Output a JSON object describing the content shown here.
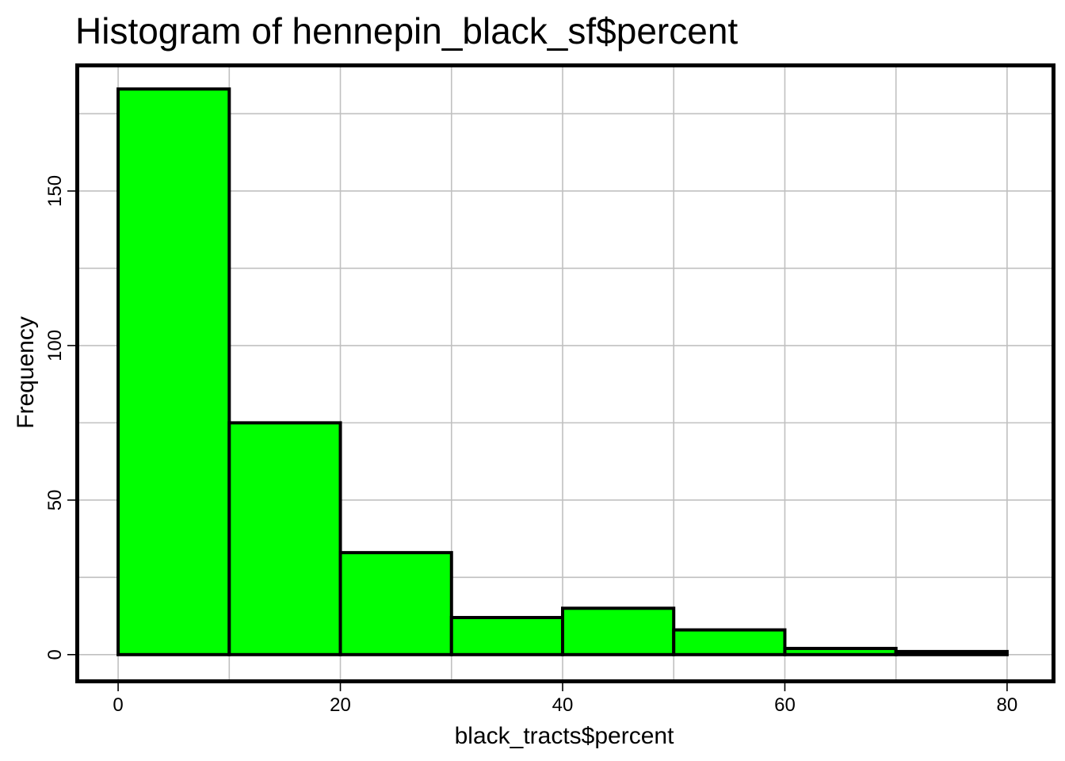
{
  "chart_data": {
    "type": "bar",
    "title": "Histogram of hennepin_black_sf$percent",
    "xlabel": "black_tracts$percent",
    "ylabel": "Frequency",
    "bins": [
      {
        "start": 0,
        "end": 10,
        "count": 183
      },
      {
        "start": 10,
        "end": 20,
        "count": 75
      },
      {
        "start": 20,
        "end": 30,
        "count": 33
      },
      {
        "start": 30,
        "end": 40,
        "count": 12
      },
      {
        "start": 40,
        "end": 50,
        "count": 15
      },
      {
        "start": 50,
        "end": 60,
        "count": 8
      },
      {
        "start": 60,
        "end": 70,
        "count": 2
      },
      {
        "start": 70,
        "end": 80,
        "count": 1
      }
    ],
    "xlim": [
      -3.5,
      84
    ],
    "ylim": [
      -8,
      190
    ],
    "x_ticks": [
      0,
      20,
      40,
      60,
      80
    ],
    "y_ticks": [
      0,
      50,
      100,
      150
    ],
    "x_grid": [
      0,
      10,
      20,
      30,
      40,
      50,
      60,
      70,
      80
    ],
    "y_grid": [
      0,
      25,
      50,
      75,
      100,
      125,
      150,
      175
    ],
    "grid": true,
    "legend": "none",
    "colors": {
      "bar_fill": "#00ff00",
      "bar_stroke": "#000000",
      "grid": "#c0c0c0",
      "frame": "#000000"
    }
  }
}
